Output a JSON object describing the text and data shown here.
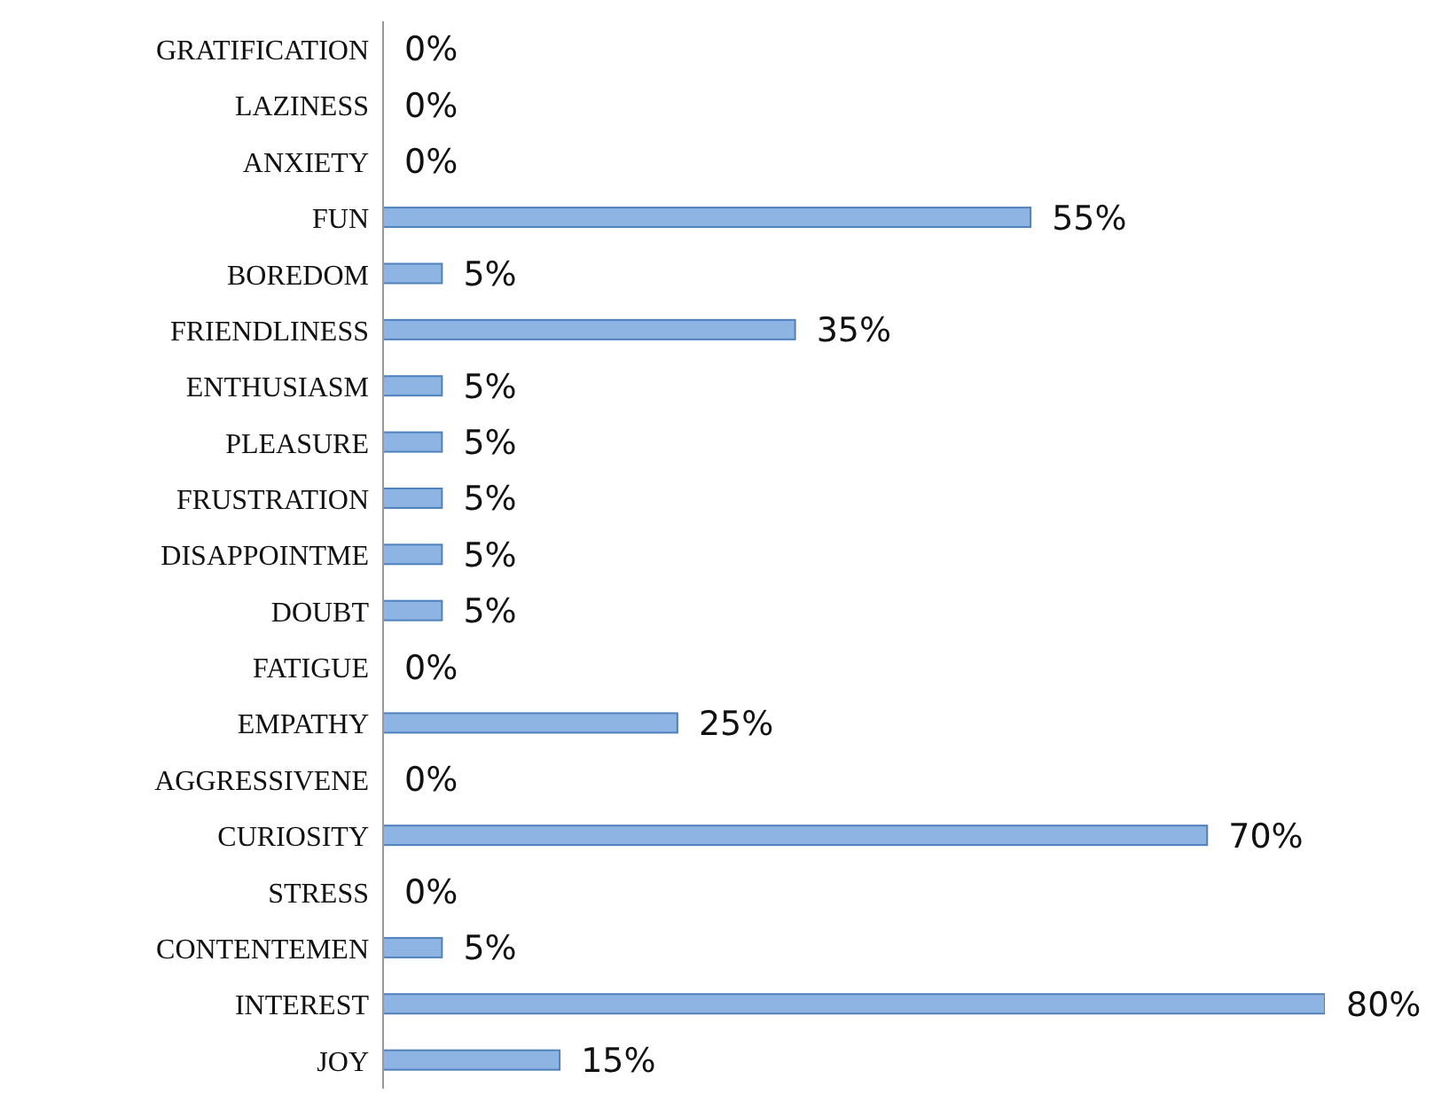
{
  "chart_data": {
    "type": "bar",
    "orientation": "horizontal",
    "categories": [
      "GRATIFICATION",
      "LAZINESS",
      "ANXIETY",
      "FUN",
      "BOREDOM",
      "FRIENDLINESS",
      "ENTHUSIASM",
      "PLEASURE",
      "FRUSTRATION",
      "DISAPPOINTME",
      "DOUBT",
      "FATIGUE",
      "EMPATHY",
      "AGGRESSIVENE",
      "CURIOSITY",
      "STRESS",
      "CONTENTEMEN",
      "INTEREST",
      "JOY"
    ],
    "values": [
      0,
      0,
      0,
      55,
      5,
      35,
      5,
      5,
      5,
      5,
      5,
      0,
      25,
      0,
      70,
      0,
      5,
      80,
      15
    ],
    "value_labels": [
      "0%",
      "0%",
      "0%",
      "55%",
      "5%",
      "35%",
      "5%",
      "5%",
      "5%",
      "5%",
      "5%",
      "0%",
      "25%",
      "0%",
      "70%",
      "0%",
      "5%",
      "80%",
      "15%"
    ],
    "color": "#8db4e2",
    "grid": false,
    "legend": false
  }
}
